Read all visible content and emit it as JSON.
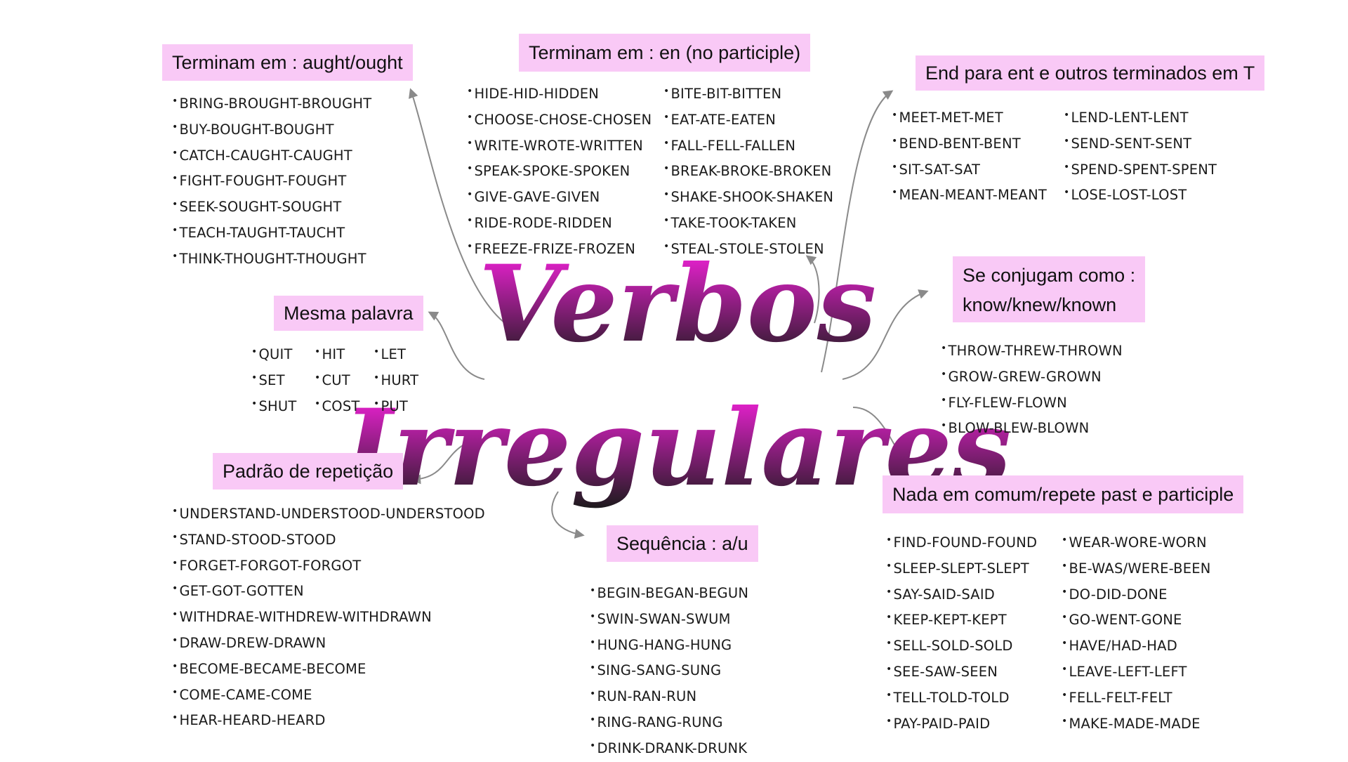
{
  "title": {
    "line1": "Verbos",
    "line2": "Irregulares",
    "gradient": {
      "from": "#ff22e4",
      "to": "#1a1a1a"
    }
  },
  "colors": {
    "label_bg": "#f9c9f6",
    "arrow": "#8a8a8a",
    "text": "#1a1a1a"
  },
  "groups": {
    "aught": {
      "label": "Terminam em : aught/ought",
      "items": [
        "BRING-BROUGHT-BROUGHT",
        "BUY-BOUGHT-BOUGHT",
        "CATCH-CAUGHT-CAUGHT",
        "FIGHT-FOUGHT-FOUGHT",
        "SEEK-SOUGHT-SOUGHT",
        "TEACH-TAUGHT-TAUCHT",
        "THINK-THOUGHT-THOUGHT"
      ]
    },
    "en": {
      "label": "Terminam em : en (no participle)",
      "col1": [
        "HIDE-HID-HIDDEN",
        "CHOOSE-CHOSE-CHOSEN",
        "WRITE-WROTE-WRITTEN",
        "SPEAK-SPOKE-SPOKEN",
        "GIVE-GAVE-GIVEN",
        "RIDE-RODE-RIDDEN",
        "FREEZE-FRIZE-FROZEN"
      ],
      "col2": [
        "BITE-BIT-BITTEN",
        "EAT-ATE-EATEN",
        "FALL-FELL-FALLEN",
        "BREAK-BROKE-BROKEN",
        "SHAKE-SHOOK-SHAKEN",
        "TAKE-TOOK-TAKEN",
        "STEAL-STOLE-STOLEN"
      ]
    },
    "ent": {
      "label": "End para ent e outros terminados em T",
      "col1": [
        "MEET-MET-MET",
        "BEND-BENT-BENT",
        "SIT-SAT-SAT",
        "MEAN-MEANT-MEANT"
      ],
      "col2": [
        "LEND-LENT-LENT",
        "SEND-SENT-SENT",
        "SPEND-SPENT-SPENT",
        "LOSE-LOST-LOST"
      ]
    },
    "same": {
      "label": "Mesma palavra",
      "col1": [
        "QUIT",
        "SET",
        "SHUT"
      ],
      "col2": [
        "HIT",
        "CUT",
        "COST"
      ],
      "col3": [
        "LET",
        "HURT",
        "PUT"
      ]
    },
    "know": {
      "label_line1": "Se conjugam como :",
      "label_line2": "know/knew/known",
      "items": [
        "THROW-THREW-THROWN",
        "GROW-GREW-GROWN",
        "FLY-FLEW-FLOWN",
        "BLOW-BLEW-BLOWN"
      ]
    },
    "repeat": {
      "label": "Padrão de repetição",
      "items": [
        "UNDERSTAND-UNDERSTOOD-UNDERSTOOD",
        "STAND-STOOD-STOOD",
        "FORGET-FORGOT-FORGOT",
        "GET-GOT-GOTTEN",
        "WITHDRAE-WITHDREW-WITHDRAWN",
        "DRAW-DREW-DRAWN",
        "BECOME-BECAME-BECOME",
        "COME-CAME-COME",
        "HEAR-HEARD-HEARD"
      ]
    },
    "au": {
      "label": "Sequência : a/u",
      "items": [
        "BEGIN-BEGAN-BEGUN",
        "SWIN-SWAN-SWUM",
        "HUNG-HANG-HUNG",
        "SING-SANG-SUNG",
        "RUN-RAN-RUN",
        "RING-RANG-RUNG",
        "DRINK-DRANK-DRUNK"
      ]
    },
    "nada": {
      "label": "Nada em comum/repete past e participle",
      "col1": [
        "FIND-FOUND-FOUND",
        "SLEEP-SLEPT-SLEPT",
        "SAY-SAID-SAID",
        "KEEP-KEPT-KEPT",
        "SELL-SOLD-SOLD",
        "SEE-SAW-SEEN",
        "TELL-TOLD-TOLD",
        "PAY-PAID-PAID"
      ],
      "col2": [
        "WEAR-WORE-WORN",
        "BE-WAS/WERE-BEEN",
        "DO-DID-DONE",
        "GO-WENT-GONE",
        "HAVE/HAD-HAD",
        "LEAVE-LEFT-LEFT",
        "FELL-FELT-FELT",
        "MAKE-MADE-MADE"
      ]
    }
  }
}
